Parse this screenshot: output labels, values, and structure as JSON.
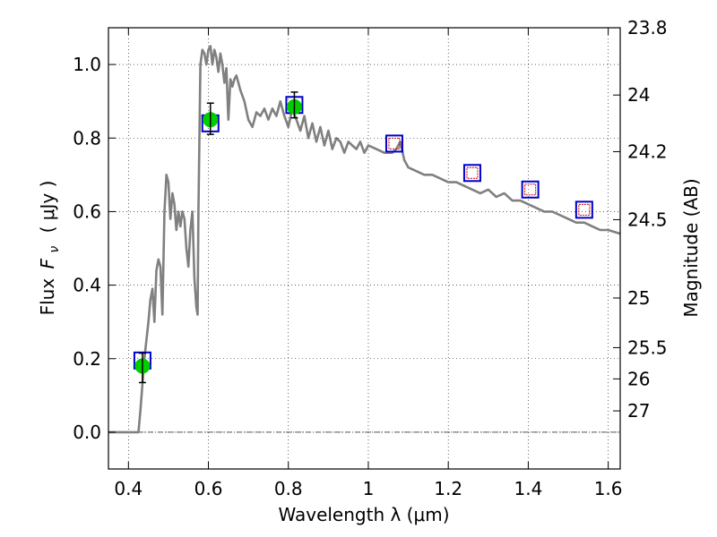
{
  "chart_data": {
    "type": "line",
    "title": "",
    "xlabel": "Wavelength  λ (μm)",
    "ylabel": "Flux  F_ν  ( μJy )",
    "ylabel_parts": {
      "prefix": "Flux ",
      "symbol": "F",
      "subscript": "ν",
      "unit": "( μJy )"
    },
    "ylabel_right": "Magnitude (AB)",
    "xlim": [
      0.35,
      1.63
    ],
    "ylim": [
      -0.1,
      1.1
    ],
    "grid": true,
    "x_ticks": [
      {
        "value": 0.4,
        "label": "0.4"
      },
      {
        "value": 0.6,
        "label": "0.6"
      },
      {
        "value": 0.8,
        "label": "0.8"
      },
      {
        "value": 1.0,
        "label": "1"
      },
      {
        "value": 1.2,
        "label": "1.2"
      },
      {
        "value": 1.4,
        "label": "1.4"
      },
      {
        "value": 1.6,
        "label": "1.6"
      }
    ],
    "y_ticks": [
      {
        "value": 0.0,
        "label": "0.0"
      },
      {
        "value": 0.2,
        "label": "0.2"
      },
      {
        "value": 0.4,
        "label": "0.4"
      },
      {
        "value": 0.6,
        "label": "0.6"
      },
      {
        "value": 0.8,
        "label": "0.8"
      },
      {
        "value": 1.0,
        "label": "1.0"
      }
    ],
    "right_ticks": [
      {
        "label": "23.8",
        "flux": 1.1
      },
      {
        "label": "24",
        "flux": 0.917
      },
      {
        "label": "24.2",
        "flux": 0.763
      },
      {
        "label": "24.5",
        "flux": 0.578
      },
      {
        "label": "25",
        "flux": 0.365
      },
      {
        "label": "25.5",
        "flux": 0.23
      },
      {
        "label": "26",
        "flux": 0.145
      },
      {
        "label": "27",
        "flux": 0.058
      }
    ],
    "series": [
      {
        "name": "model spectrum",
        "kind": "line",
        "color": "#808080",
        "x": [
          0.35,
          0.42,
          0.425,
          0.43,
          0.44,
          0.45,
          0.455,
          0.46,
          0.465,
          0.47,
          0.475,
          0.48,
          0.485,
          0.49,
          0.495,
          0.5,
          0.505,
          0.51,
          0.515,
          0.52,
          0.525,
          0.53,
          0.535,
          0.54,
          0.545,
          0.55,
          0.555,
          0.56,
          0.565,
          0.57,
          0.573,
          0.575,
          0.58,
          0.585,
          0.59,
          0.595,
          0.6,
          0.605,
          0.61,
          0.615,
          0.62,
          0.625,
          0.63,
          0.635,
          0.64,
          0.645,
          0.65,
          0.655,
          0.66,
          0.665,
          0.67,
          0.675,
          0.68,
          0.69,
          0.7,
          0.71,
          0.72,
          0.73,
          0.74,
          0.75,
          0.76,
          0.77,
          0.78,
          0.79,
          0.8,
          0.81,
          0.82,
          0.83,
          0.84,
          0.85,
          0.86,
          0.87,
          0.88,
          0.89,
          0.9,
          0.91,
          0.92,
          0.93,
          0.94,
          0.95,
          0.96,
          0.97,
          0.98,
          0.99,
          1.0,
          1.02,
          1.04,
          1.06,
          1.07,
          1.08,
          1.09,
          1.1,
          1.12,
          1.14,
          1.16,
          1.18,
          1.2,
          1.22,
          1.24,
          1.26,
          1.28,
          1.3,
          1.32,
          1.34,
          1.36,
          1.38,
          1.4,
          1.42,
          1.44,
          1.46,
          1.48,
          1.5,
          1.52,
          1.54,
          1.56,
          1.58,
          1.6,
          1.63
        ],
        "y": [
          0.0,
          0.0,
          0.0,
          0.06,
          0.2,
          0.3,
          0.36,
          0.39,
          0.3,
          0.44,
          0.47,
          0.45,
          0.32,
          0.6,
          0.7,
          0.68,
          0.58,
          0.65,
          0.62,
          0.55,
          0.6,
          0.56,
          0.6,
          0.58,
          0.5,
          0.45,
          0.55,
          0.6,
          0.42,
          0.34,
          0.32,
          0.6,
          1.0,
          1.04,
          1.03,
          1.0,
          1.04,
          1.05,
          1.0,
          1.04,
          1.02,
          0.98,
          1.03,
          1.0,
          0.95,
          0.99,
          0.85,
          0.96,
          0.94,
          0.96,
          0.97,
          0.95,
          0.93,
          0.9,
          0.85,
          0.83,
          0.87,
          0.86,
          0.88,
          0.85,
          0.88,
          0.86,
          0.9,
          0.86,
          0.83,
          0.88,
          0.85,
          0.82,
          0.86,
          0.8,
          0.84,
          0.79,
          0.83,
          0.78,
          0.82,
          0.77,
          0.8,
          0.79,
          0.76,
          0.79,
          0.78,
          0.77,
          0.79,
          0.76,
          0.78,
          0.77,
          0.76,
          0.76,
          0.77,
          0.79,
          0.74,
          0.72,
          0.71,
          0.7,
          0.7,
          0.69,
          0.68,
          0.68,
          0.67,
          0.66,
          0.65,
          0.66,
          0.64,
          0.65,
          0.63,
          0.63,
          0.62,
          0.61,
          0.6,
          0.6,
          0.59,
          0.58,
          0.57,
          0.57,
          0.56,
          0.55,
          0.55,
          0.54
        ]
      },
      {
        "name": "photometry (green)",
        "kind": "points",
        "color": "#00cc00",
        "x": [
          0.435,
          0.605,
          0.815
        ],
        "y": [
          0.18,
          0.85,
          0.885
        ],
        "err_low": [
          0.135,
          0.81,
          0.855
        ],
        "err_high": [
          0.215,
          0.895,
          0.925
        ]
      },
      {
        "name": "model points (blue squares)",
        "kind": "square",
        "color": "#0000cc",
        "x": [
          0.435,
          0.605,
          0.815,
          1.065,
          1.26,
          1.405,
          1.54
        ],
        "y": [
          0.195,
          0.84,
          0.89,
          0.785,
          0.705,
          0.66,
          0.605
        ]
      },
      {
        "name": "predicted points (red squares)",
        "kind": "square-small",
        "color": "#cc0000",
        "x": [
          1.065,
          1.26,
          1.405,
          1.54
        ],
        "y": [
          0.785,
          0.705,
          0.66,
          0.605
        ]
      }
    ]
  }
}
